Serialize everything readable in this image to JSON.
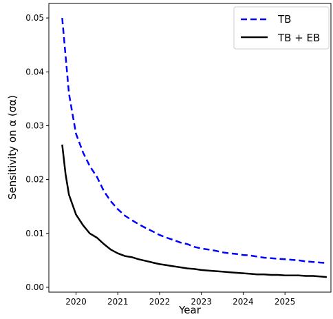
{
  "chart_data": {
    "type": "line",
    "title": "",
    "xlabel": "Year",
    "ylabel": "Sensitivity on α (σα)",
    "xlim": [
      2019.35,
      2026.1
    ],
    "ylim": [
      -0.0009,
      0.0527
    ],
    "x_ticks": [
      2020,
      2021,
      2022,
      2023,
      2024,
      2025
    ],
    "x_tick_labels": [
      "2020",
      "2021",
      "2022",
      "2023",
      "2024",
      "2025"
    ],
    "y_ticks": [
      0.0,
      0.01,
      0.02,
      0.03,
      0.04,
      0.05
    ],
    "y_tick_labels": [
      "0.00",
      "0.01",
      "0.02",
      "0.03",
      "0.04",
      "0.05"
    ],
    "grid": false,
    "legend_position": "top-right",
    "series": [
      {
        "name": "TB",
        "color": "#0000ff",
        "style": "dashed",
        "x": [
          2019.67,
          2019.83,
          2019.92,
          2020.0,
          2020.17,
          2020.33,
          2020.5,
          2020.67,
          2020.83,
          2021.0,
          2021.17,
          2021.33,
          2021.5,
          2021.67,
          2021.83,
          2022.0,
          2022.17,
          2022.33,
          2022.5,
          2022.67,
          2022.83,
          2023.0,
          2023.17,
          2023.33,
          2023.5,
          2023.67,
          2023.83,
          2024.0,
          2024.17,
          2024.33,
          2024.5,
          2024.67,
          2024.83,
          2025.0,
          2025.17,
          2025.33,
          2025.5,
          2025.67,
          2025.83,
          2026.0
        ],
        "y": [
          0.05,
          0.036,
          0.032,
          0.0285,
          0.025,
          0.0225,
          0.0205,
          0.0178,
          0.016,
          0.0145,
          0.0133,
          0.0125,
          0.0117,
          0.011,
          0.0104,
          0.0097,
          0.0092,
          0.0088,
          0.0083,
          0.008,
          0.0075,
          0.0072,
          0.007,
          0.0068,
          0.0065,
          0.0063,
          0.0062,
          0.006,
          0.0059,
          0.0057,
          0.0055,
          0.0054,
          0.0053,
          0.0052,
          0.0051,
          0.005,
          0.0048,
          0.0047,
          0.0046,
          0.0045
        ]
      },
      {
        "name": "TB + EB",
        "color": "#000000",
        "style": "solid",
        "x": [
          2019.67,
          2019.75,
          2019.83,
          2020.0,
          2020.17,
          2020.33,
          2020.5,
          2020.67,
          2020.83,
          2021.0,
          2021.17,
          2021.33,
          2021.5,
          2021.67,
          2021.83,
          2022.0,
          2022.17,
          2022.33,
          2022.5,
          2022.67,
          2022.83,
          2023.0,
          2023.17,
          2023.33,
          2023.5,
          2023.67,
          2023.83,
          2024.0,
          2024.17,
          2024.33,
          2024.5,
          2024.67,
          2024.83,
          2025.0,
          2025.17,
          2025.33,
          2025.5,
          2025.67,
          2025.83,
          2026.0
        ],
        "y": [
          0.0265,
          0.021,
          0.0172,
          0.0135,
          0.0115,
          0.01,
          0.0092,
          0.008,
          0.007,
          0.0063,
          0.0058,
          0.0056,
          0.0052,
          0.0049,
          0.0046,
          0.0043,
          0.0041,
          0.0039,
          0.0037,
          0.0035,
          0.0034,
          0.0032,
          0.0031,
          0.003,
          0.0029,
          0.0028,
          0.0027,
          0.0026,
          0.0025,
          0.0024,
          0.0024,
          0.0023,
          0.0023,
          0.0022,
          0.0022,
          0.0022,
          0.0021,
          0.0021,
          0.002,
          0.0019
        ]
      }
    ]
  }
}
